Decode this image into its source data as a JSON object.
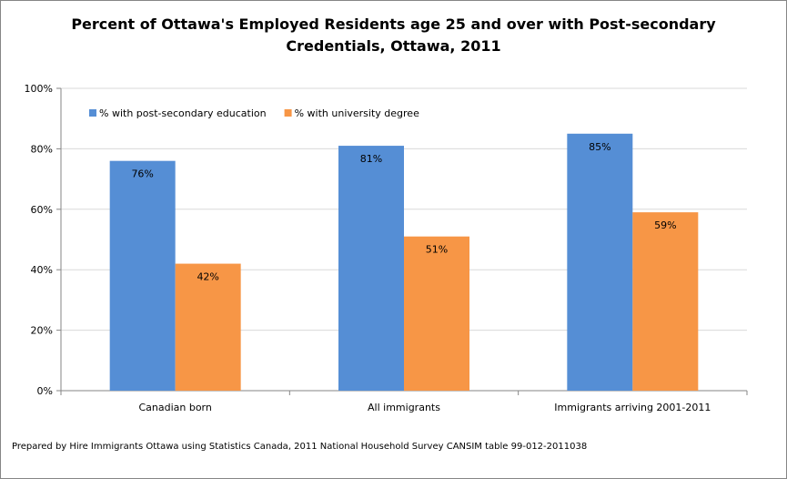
{
  "chart_data": {
    "type": "bar",
    "title_lines": [
      "Percent of Ottawa's Employed Residents age 25 and over with Post-secondary",
      "Credentials, Ottawa, 2011"
    ],
    "categories": [
      "Canadian born",
      "All immigrants",
      "Immigrants arriving 2001-2011"
    ],
    "series": [
      {
        "name": "% with post-secondary education",
        "values": [
          76,
          81,
          85
        ],
        "labels": [
          "76%",
          "81%",
          "85%"
        ],
        "color": "#558ED5"
      },
      {
        "name": "% with university degree",
        "values": [
          42,
          51,
          59
        ],
        "labels": [
          "42%",
          "51%",
          "59%"
        ],
        "color": "#F79646"
      }
    ],
    "ylim": [
      0,
      100
    ],
    "y_ticks": [
      0,
      20,
      40,
      60,
      80,
      100
    ],
    "y_tick_labels": [
      "0%",
      "20%",
      "40%",
      "60%",
      "80%",
      "100%"
    ],
    "grid": true,
    "legend_position": "top-left"
  },
  "footer": "Prepared by Hire Immigrants Ottawa using Statistics Canada, 2011 National Household Survey CANSIM table 99-012-2011038"
}
